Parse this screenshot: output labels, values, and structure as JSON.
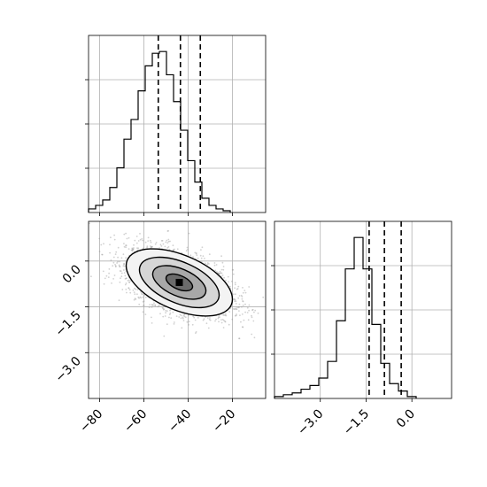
{
  "chart_data": {
    "type": "corner",
    "title": "",
    "parameters": [
      {
        "name": "",
        "range": [
          -85,
          -5
        ],
        "ticks": [
          -80,
          -60,
          -40,
          -20
        ],
        "tick_labels": [
          "−80",
          "−60",
          "−40",
          "−20"
        ],
        "quantiles": [
          -53.5,
          -43.5,
          -34.5
        ],
        "histogram": {
          "bin_start": -85,
          "bin_width": 3.2,
          "counts": [
            2,
            4,
            7,
            14,
            25,
            41,
            52,
            68,
            82,
            89,
            90,
            77,
            62,
            46,
            29,
            17,
            8,
            4,
            2,
            1
          ]
        }
      },
      {
        "name": "",
        "range": [
          -4.5,
          1.3
        ],
        "ticks": [
          -3.0,
          -1.5,
          0.0
        ],
        "tick_labels": [
          "−3.0",
          "−1.5",
          "0.0"
        ],
        "quantiles": [
          -1.4,
          -0.9,
          -0.35
        ],
        "histogram": {
          "bin_start": -4.5,
          "bin_width": 0.29,
          "counts": [
            1,
            2,
            3,
            5,
            7,
            11,
            20,
            42,
            70,
            87,
            70,
            40,
            19,
            8,
            4,
            1
          ]
        }
      }
    ],
    "joint": {
      "mean": [
        -44,
        -0.7
      ],
      "std": [
        12,
        0.55
      ],
      "correlation": -0.5,
      "n_points": 3000,
      "contour_levels": [
        0.5,
        1.0,
        1.5,
        2.0
      ],
      "y_ticks": [
        0.0,
        -1.5,
        -3.0
      ],
      "y_tick_labels": [
        "0.0",
        "−1.5",
        "−3.0"
      ]
    },
    "grid": true,
    "colors": {
      "line": "#000000",
      "grid": "#b0b0b0",
      "points": "#9a9a9a"
    }
  }
}
